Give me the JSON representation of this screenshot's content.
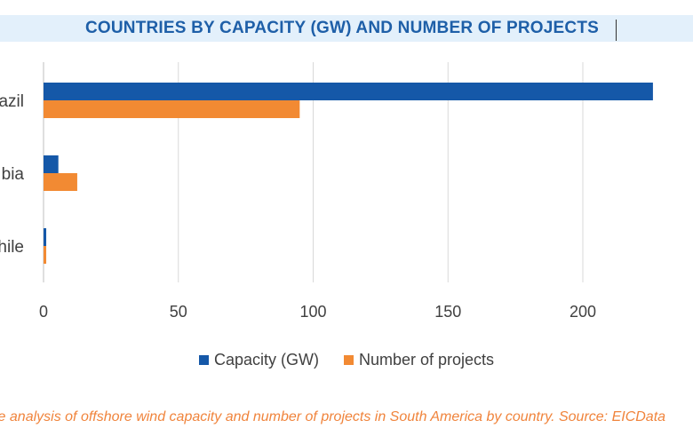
{
  "chart_data": {
    "type": "bar",
    "orientation": "horizontal",
    "title": "COUNTRIES BY CAPACITY (GW) AND NUMBER OF PROJECTS",
    "categories": [
      "Brazil",
      "Colombia",
      "Chile"
    ],
    "visible_labels": [
      "azil",
      "bia",
      "hile"
    ],
    "series": [
      {
        "name": "Capacity (GW)",
        "values": [
          226,
          5.5,
          1
        ],
        "color": "#1558a8"
      },
      {
        "name": "Number of projects",
        "values": [
          95,
          12.5,
          1
        ],
        "color": "#f28a33"
      }
    ],
    "xlim": [
      0,
      230
    ],
    "xticks": [
      0,
      50,
      100,
      150,
      200
    ],
    "grid": true,
    "legend": "bottom"
  },
  "caption": "Comparative analysis of offshore wind capacity and number of projects in South America by country. Source: EICDataStream",
  "caption_visible": "ive analysis of offshore wind capacity and number of projects in South America by country. Source: EICData"
}
